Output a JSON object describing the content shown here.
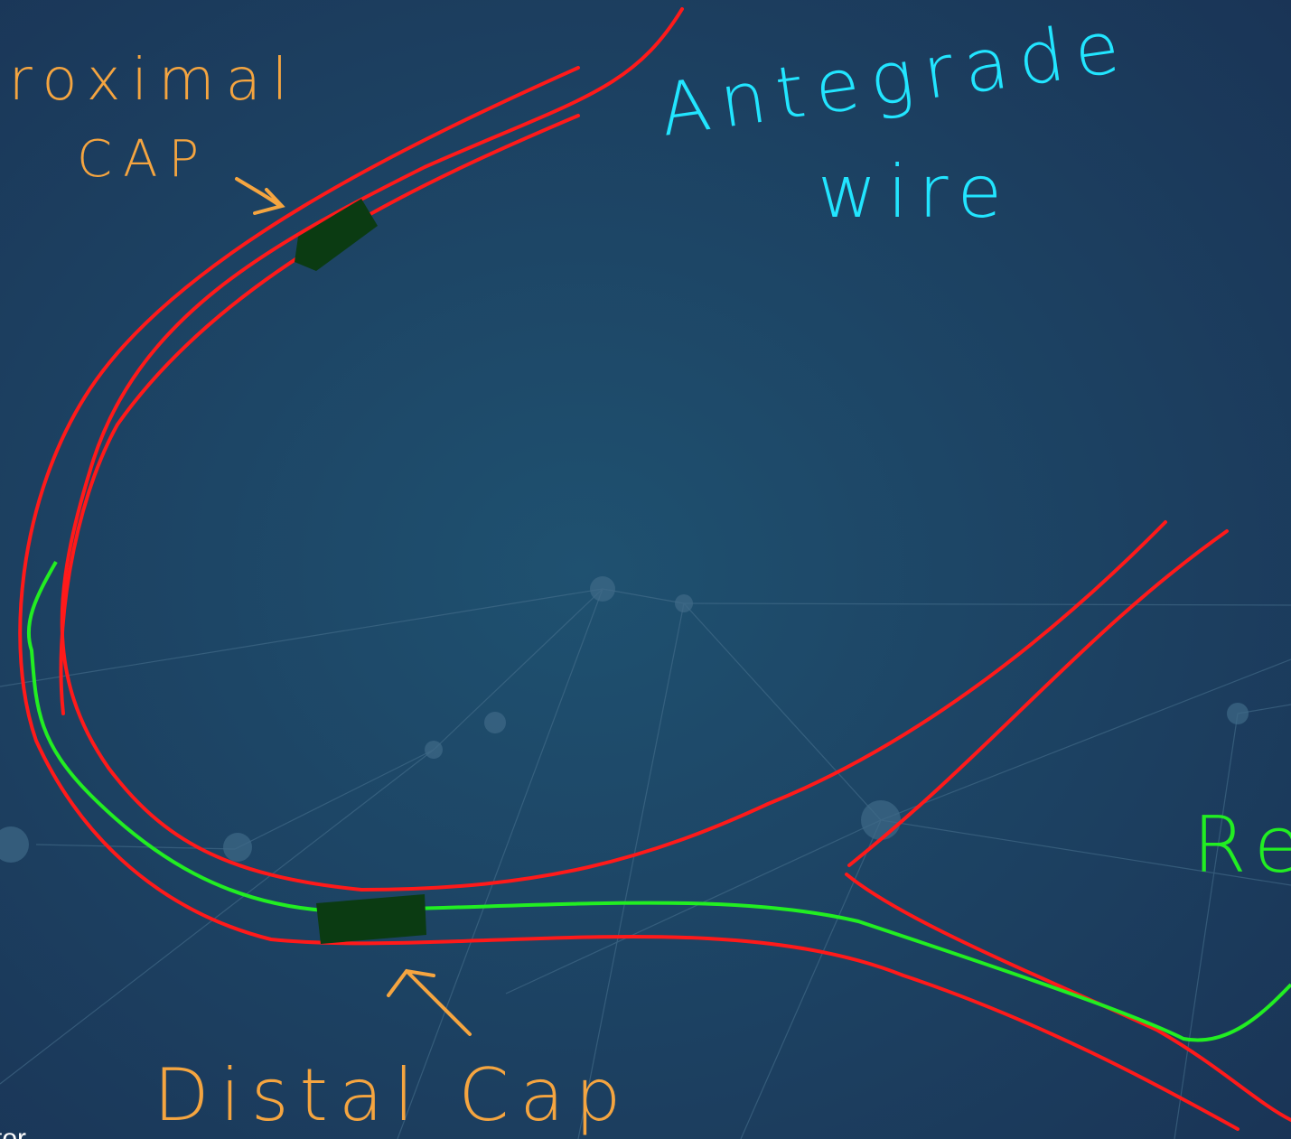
{
  "annotations": {
    "proximal": "Proximal",
    "cap": "CAP",
    "antegrade": "Antegrade",
    "wire": "wire",
    "retrograde": "Re",
    "distal_cap": "Distal Cap",
    "footer": "tor"
  }
}
